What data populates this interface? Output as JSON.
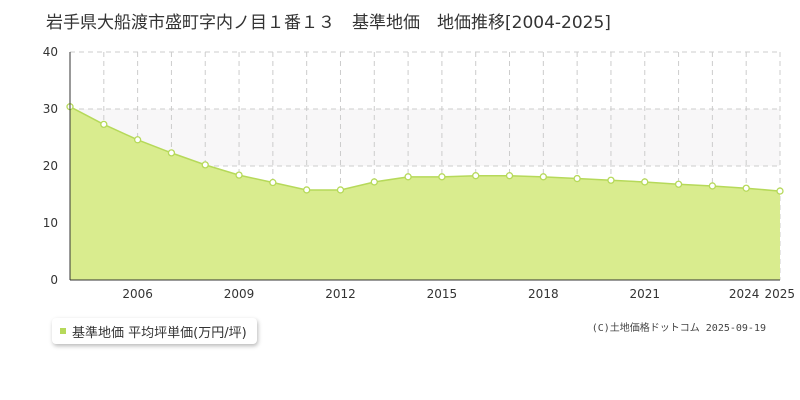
{
  "title": "岩手県大船渡市盛町字内ノ目１番１３　基準地価　地価推移[2004-2025]",
  "legend": {
    "label": "基準地価 平均坪単価(万円/坪)"
  },
  "credit": "(C)土地価格ドットコム 2025-09-19",
  "colors": {
    "fill": "#d9ec8e",
    "line": "#b6d95a",
    "point_fill": "#ffffff",
    "band": "#f8f7f8",
    "grid": "#cccccc",
    "axis": "#333333",
    "legend_swatch": "#b6d95a"
  },
  "chart_data": {
    "type": "area",
    "title": "岩手県大船渡市盛町字内ノ目１番１３　基準地価　地価推移[2004-2025]",
    "xlabel": "",
    "ylabel": "",
    "xlim": [
      2004,
      2025
    ],
    "ylim": [
      0,
      40
    ],
    "yticks": [
      0,
      10,
      20,
      30,
      40
    ],
    "xtick_labels": [
      {
        "x": 2006,
        "label": "2006"
      },
      {
        "x": 2009,
        "label": "2009"
      },
      {
        "x": 2012,
        "label": "2012"
      },
      {
        "x": 2015,
        "label": "2015"
      },
      {
        "x": 2018,
        "label": "2018"
      },
      {
        "x": 2021,
        "label": "2021"
      },
      {
        "x": 2024,
        "label": "2024"
      },
      {
        "x": 2025,
        "label": "2025"
      }
    ],
    "grid": true,
    "legend_position": "bottom-left",
    "series": [
      {
        "name": "基準地価 平均坪単価(万円/坪)",
        "x": [
          2004,
          2005,
          2006,
          2007,
          2008,
          2009,
          2010,
          2011,
          2012,
          2013,
          2014,
          2015,
          2016,
          2017,
          2018,
          2019,
          2020,
          2021,
          2022,
          2023,
          2024,
          2025
        ],
        "values": [
          30.4,
          27.3,
          24.6,
          22.3,
          20.2,
          18.4,
          17.1,
          15.8,
          15.8,
          17.2,
          18.1,
          18.1,
          18.3,
          18.3,
          18.1,
          17.8,
          17.5,
          17.2,
          16.8,
          16.5,
          16.1,
          15.6
        ]
      }
    ]
  }
}
